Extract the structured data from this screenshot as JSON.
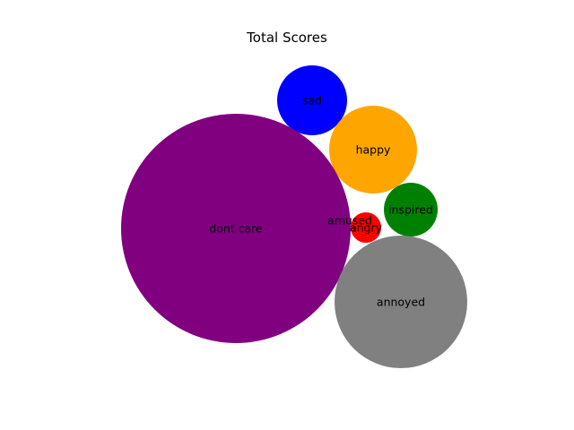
{
  "chart_data": {
    "type": "bubble",
    "title": "Total Scores",
    "axes_visible": false,
    "bubbles": [
      {
        "label": "sad",
        "color": "#0000ff"
      },
      {
        "label": "happy",
        "color": "#ffa500"
      },
      {
        "label": "inspired",
        "color": "#008000"
      },
      {
        "label": "amused",
        "color": null
      },
      {
        "label": "angry",
        "color": "#ff0000"
      },
      {
        "label": "dont care",
        "color": "#800080"
      },
      {
        "label": "annoyed",
        "color": "#808080"
      }
    ]
  }
}
